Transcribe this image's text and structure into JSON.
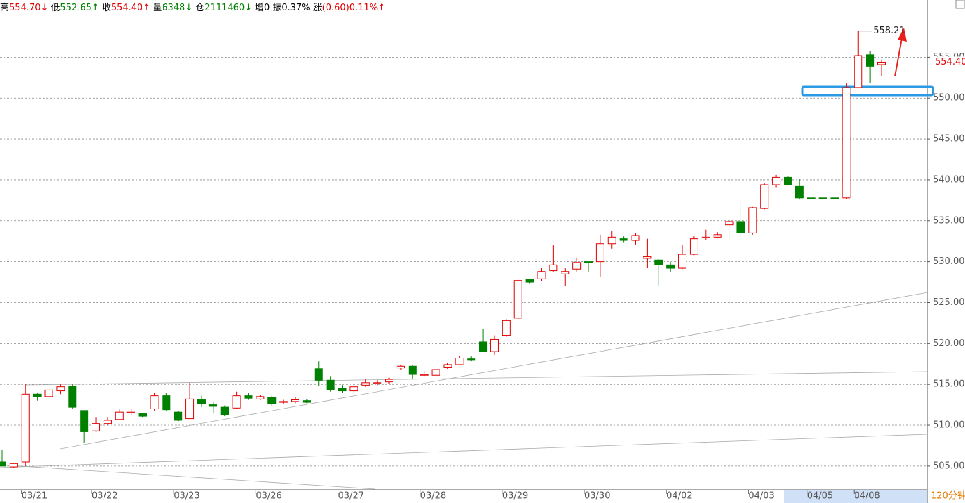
{
  "chart_data": {
    "type": "candlestick",
    "header": [
      {
        "label": "高",
        "value": "554.70↓",
        "color": "#e00000"
      },
      {
        "label": "低",
        "value": "552.65↑",
        "color": "#008000"
      },
      {
        "label": "收",
        "value": "554.40↑",
        "color": "#e00000"
      },
      {
        "label": "量",
        "value": "6348↓",
        "color": "#008000"
      },
      {
        "label": "仓",
        "value": "2111460↓",
        "color": "#008000"
      },
      {
        "label": "增",
        "value": "0",
        "color": "#000000"
      },
      {
        "label": "振",
        "value": "0.37%",
        "color": "#000000"
      },
      {
        "label": "涨",
        "value": "(0.60)0.11%↑",
        "color": "#e00000"
      }
    ],
    "period": "120分钟",
    "up_color": "#e00000",
    "down_color": "#008000",
    "categories": [
      null,
      null,
      "03/21",
      null,
      null,
      null,
      null,
      null,
      "03/22",
      null,
      null,
      null,
      null,
      null,
      null,
      "03/23",
      null,
      null,
      null,
      null,
      null,
      null,
      "03/26",
      null,
      null,
      null,
      null,
      null,
      null,
      "03/27",
      null,
      null,
      null,
      null,
      null,
      null,
      "03/28",
      null,
      null,
      null,
      null,
      null,
      null,
      "03/29",
      null,
      null,
      null,
      null,
      null,
      null,
      "03/30",
      null,
      null,
      null,
      null,
      null,
      null,
      "04/02",
      null,
      null,
      null,
      null,
      null,
      null,
      "04/03",
      null,
      null,
      null,
      null,
      "04/05",
      null,
      null,
      null,
      "04/08",
      null,
      null
    ],
    "open": [
      505.5,
      504.9,
      505.5,
      513.8,
      513.5,
      514.2,
      514.8,
      511.8,
      509.3,
      510.2,
      510.7,
      511.5,
      511.4,
      512,
      513.6,
      511.6,
      510.8,
      513.1,
      512.5,
      512.2,
      512.1,
      513.6,
      513.2,
      513.4,
      512.8,
      512.9,
      513,
      516.9,
      515.5,
      514.5,
      514.2,
      514.9,
      515.1,
      515.3,
      517,
      517.2,
      516.1,
      516.1,
      517.1,
      517.4,
      518.1,
      520.2,
      519,
      521,
      523.1,
      527.8,
      527.9,
      528.9,
      528.5,
      529.1,
      530,
      530,
      532.2,
      532.8,
      532.6,
      530.4,
      530.2,
      529.6,
      529.2,
      530.9,
      532.9,
      533,
      534.5,
      534.9,
      533.5,
      536.5,
      539.4,
      540.3,
      539.2,
      537.8,
      537.8,
      537.8,
      537.8,
      551.3,
      555.3,
      554.1
    ],
    "high": [
      507,
      505.4,
      515,
      514,
      514.8,
      515,
      515,
      511.8,
      511,
      511,
      512,
      512,
      511.5,
      514,
      514,
      511.7,
      515.2,
      513.6,
      512.8,
      512.4,
      514.1,
      513.9,
      513.7,
      513.6,
      513.1,
      513.4,
      513.2,
      517.8,
      516,
      514.9,
      514.9,
      515.6,
      515.5,
      515.8,
      517.4,
      517.3,
      516.6,
      517,
      517.6,
      518.5,
      518.4,
      521.8,
      521,
      523,
      527.8,
      527.9,
      529.2,
      532,
      529.2,
      530.5,
      530,
      533.3,
      533.7,
      533.1,
      533.5,
      532.8,
      530.3,
      530,
      532,
      533.1,
      533.9,
      533.6,
      535.2,
      537.4,
      536.7,
      539.6,
      540.6,
      540.4,
      540.1,
      537.8,
      537.8,
      537.8,
      551.8,
      558.21,
      555.8,
      554.7
    ],
    "low": [
      505,
      504.8,
      505,
      513,
      513.3,
      513.8,
      512,
      507.8,
      509.2,
      510,
      510.6,
      511.2,
      511,
      511.8,
      511.8,
      510.5,
      510.8,
      512.2,
      511.5,
      511.1,
      512,
      513.1,
      513.1,
      512.3,
      512.6,
      512.7,
      512.7,
      514.8,
      514.1,
      514,
      513.8,
      514.7,
      514.9,
      515.1,
      516.8,
      515.7,
      516,
      515.9,
      516.9,
      517.3,
      517.8,
      519,
      518.6,
      520.8,
      523,
      527.3,
      527.6,
      528.8,
      527,
      528.8,
      528.8,
      528.1,
      531.6,
      532.3,
      532.1,
      529.2,
      527.1,
      528.7,
      529.1,
      530.8,
      532.6,
      532.9,
      532.7,
      532.6,
      533.3,
      536.4,
      539.1,
      539.3,
      537.6,
      537.8,
      537.8,
      537.8,
      537.7,
      551.2,
      551.8,
      552.65
    ],
    "close": [
      505,
      505.3,
      513.8,
      513.5,
      514.3,
      514.7,
      512.2,
      509.2,
      510.2,
      510.6,
      511.6,
      511.6,
      511.1,
      513.6,
      511.9,
      510.6,
      513.2,
      512.6,
      512.3,
      511.3,
      513.6,
      513.3,
      513.5,
      512.6,
      512.9,
      513.1,
      512.8,
      515.5,
      514.3,
      514.2,
      514.7,
      515.2,
      515.2,
      515.6,
      517.2,
      516.2,
      516.2,
      516.8,
      517.4,
      518.2,
      518,
      519,
      520.5,
      522.8,
      527.7,
      527.5,
      528.8,
      529.6,
      528.8,
      529.9,
      529.9,
      532.2,
      533,
      532.6,
      533.2,
      530.6,
      529.6,
      529.2,
      530.9,
      532.8,
      533,
      533.3,
      534.9,
      533.5,
      536.6,
      539.4,
      540.3,
      539.4,
      537.8,
      537.8,
      537.8,
      537.8,
      551.3,
      555.2,
      553.9,
      554.4
    ],
    "max_label": 558.21,
    "last_price": {
      "value": 554.4,
      "label": "554.40"
    },
    "ylim": [
      502.1,
      562
    ],
    "yticks": [
      {
        "value": 505,
        "label": "505.00"
      },
      {
        "value": 510,
        "label": "510.00"
      },
      {
        "value": 515,
        "label": "515.00"
      },
      {
        "value": 520,
        "label": "520.00"
      },
      {
        "value": 525,
        "label": "525.00"
      },
      {
        "value": 530,
        "label": "530.00"
      },
      {
        "value": 535,
        "label": "535.00"
      },
      {
        "value": 540,
        "label": "540.00"
      },
      {
        "value": 545,
        "label": "545.00"
      },
      {
        "value": 550,
        "label": "550.00"
      },
      {
        "value": 555,
        "label": "555.00"
      }
    ],
    "grid": true
  }
}
